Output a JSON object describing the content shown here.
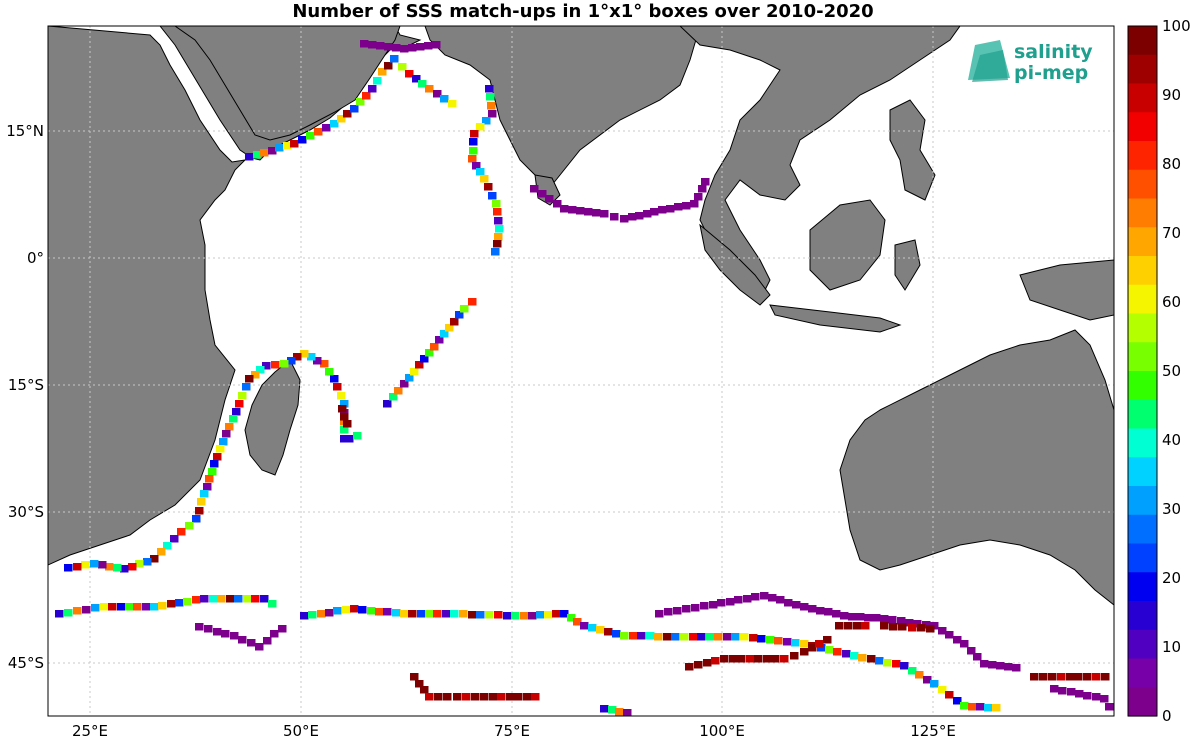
{
  "title": "Number of SSS match-ups in 1°x1° boxes over 2010-2020",
  "colorbar": {
    "tick_labels": [
      "100",
      "90",
      "80",
      "70",
      "60",
      "50",
      "40",
      "30",
      "20",
      "10",
      "0"
    ],
    "colors": [
      "#7d0000",
      "#9e0000",
      "#c80000",
      "#f20000",
      "#ff2400",
      "#ff5000",
      "#ff7d00",
      "#ffa600",
      "#ffd000",
      "#f5f500",
      "#b4ff00",
      "#78ff00",
      "#32ff00",
      "#00ff6e",
      "#00ffd2",
      "#00d2ff",
      "#00a0ff",
      "#006eff",
      "#0040ff",
      "#0000f0",
      "#2800d2",
      "#5000c0",
      "#7800a8",
      "#7d008c"
    ]
  },
  "axes": {
    "lon_labels": [
      {
        "deg": 25,
        "label": "25°E"
      },
      {
        "deg": 50,
        "label": "50°E"
      },
      {
        "deg": 75,
        "label": "75°E"
      },
      {
        "deg": 100,
        "label": "100°E"
      },
      {
        "deg": 125,
        "label": "125°E"
      }
    ],
    "lat_labels": [
      {
        "deg": 15,
        "label": "15°N"
      },
      {
        "deg": 0,
        "label": "0°"
      },
      {
        "deg": -15,
        "label": "15°S"
      },
      {
        "deg": -30,
        "label": "30°S"
      },
      {
        "deg": -45,
        "label": "45°S"
      }
    ]
  },
  "logo": {
    "line1": "salinity",
    "line2": "pi-mep",
    "color": "#1f9f8e"
  },
  "colors": {
    "land": "#808080",
    "ocean": "#ffffff",
    "grid": "#c8c8c8"
  },
  "tracks": [
    {
      "values": [
        100,
        100,
        100,
        100,
        100,
        100,
        100,
        100,
        100,
        100,
        100,
        100,
        100,
        100,
        100,
        100,
        100,
        100,
        100,
        100
      ],
      "color_hint": "red-brown"
    },
    {
      "values": [
        0,
        0,
        0,
        0,
        0,
        0,
        0,
        0,
        0,
        0,
        0,
        0,
        0,
        0,
        0,
        0,
        0,
        0,
        0,
        0,
        0,
        0,
        0,
        0,
        0,
        0,
        0,
        0,
        0,
        0,
        0,
        0,
        0,
        0,
        0,
        0,
        0,
        0,
        0,
        0,
        0
      ],
      "color_hint": "purple"
    }
  ]
}
